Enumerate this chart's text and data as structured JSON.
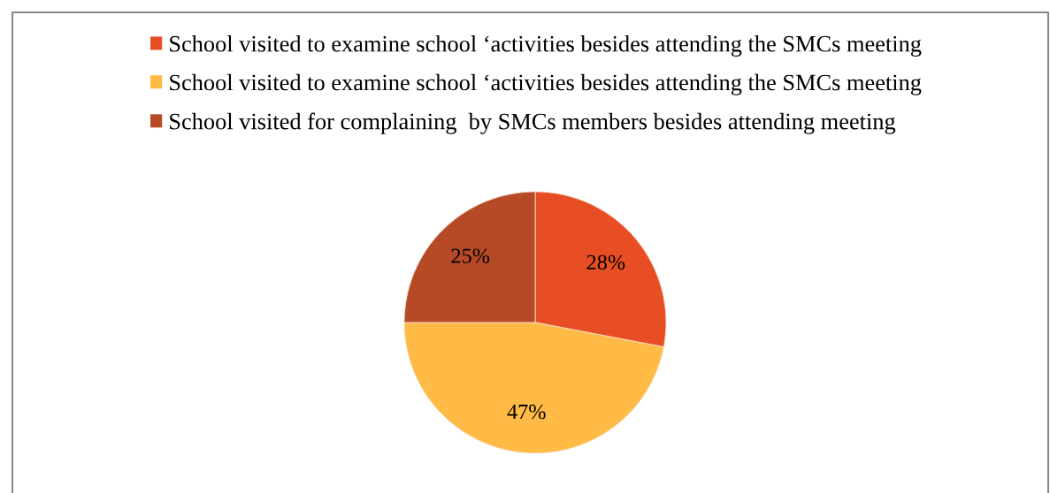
{
  "chart_data": {
    "type": "pie",
    "categories": [
      "School visited to examine school ‘activities besides attending the SMCs meeting",
      "School visited to examine school ‘activities besides attending the SMCs meeting",
      "School visited for complaining  by SMCs members besides attending meeting"
    ],
    "values": [
      28,
      47,
      25
    ],
    "colors": [
      "#e84e24",
      "#ffbb45",
      "#b74a26"
    ],
    "value_labels": [
      "28%",
      "47%",
      "25%"
    ],
    "legend": "top"
  }
}
